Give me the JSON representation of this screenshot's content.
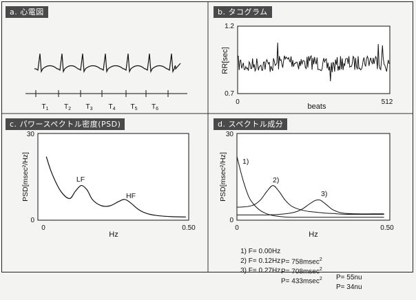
{
  "panels": {
    "a": {
      "label": "a. 心電図",
      "intervals": [
        "T",
        "T",
        "T",
        "T",
        "T",
        "T"
      ],
      "subscripts": [
        "1",
        "2",
        "3",
        "4",
        "5",
        "6"
      ]
    },
    "b": {
      "label": "b. タコグラム",
      "ylabel": "RR[sec]",
      "xlabel": "beats",
      "yticks": [
        "1.2",
        "0.7"
      ],
      "xticks": [
        "0",
        "512"
      ]
    },
    "c": {
      "label": "c. パワースペクトル密度(PSD)",
      "ylabel": "PSD[msec²/Hz]",
      "xlabel": "Hz",
      "yticks": [
        "30",
        "0"
      ],
      "xticks": [
        "0",
        "0.50"
      ],
      "annotations": [
        "LF",
        "HF"
      ]
    },
    "d": {
      "label": "d. スペクトル成分",
      "ylabel": "PSD[msec²/Hz]",
      "xlabel": "Hz",
      "yticks": [
        "30",
        "0"
      ],
      "xticks": [
        "0",
        "0.50"
      ],
      "component_labels": [
        "1)",
        "2)",
        "3)"
      ],
      "legend": [
        {
          "f": "1) F= 0.00Hz",
          "p": "P= 758msec",
          "sup": "2",
          "nu": ""
        },
        {
          "f": "2) F= 0.12Hz",
          "p": "P= 708msec",
          "sup": "2",
          "nu": "P= 55nu"
        },
        {
          "f": "3) F= 0.27Hz",
          "p": "P= 433msec",
          "sup": "2",
          "nu": "P= 34nu"
        }
      ]
    }
  },
  "chart_data": [
    {
      "type": "line",
      "title": "c. パワースペクトル密度(PSD)",
      "xlabel": "Hz",
      "ylabel": "PSD[msec²/Hz]",
      "xlim": [
        0,
        0.5
      ],
      "ylim": [
        0,
        30
      ],
      "x": [
        0.01,
        0.03,
        0.06,
        0.09,
        0.11,
        0.13,
        0.15,
        0.17,
        0.2,
        0.23,
        0.26,
        0.28,
        0.3,
        0.33,
        0.36,
        0.4,
        0.45,
        0.49
      ],
      "series": [
        {
          "values": [
            22,
            16,
            10,
            7.5,
            10,
            12,
            10.5,
            7,
            5,
            5,
            6.5,
            7.2,
            6,
            3.5,
            2.2,
            1.5,
            1.2,
            1.1
          ]
        }
      ]
    },
    {
      "type": "line",
      "title": "d. スペクトル成分",
      "xlabel": "Hz",
      "ylabel": "PSD[msec²/Hz]",
      "xlim": [
        0,
        0.5
      ],
      "ylim": [
        0,
        30
      ],
      "x": [
        0.0,
        0.02,
        0.04,
        0.06,
        0.08,
        0.1,
        0.12,
        0.14,
        0.16,
        0.18,
        0.2,
        0.22,
        0.24,
        0.26,
        0.27,
        0.28,
        0.3,
        0.32,
        0.35,
        0.4,
        0.45,
        0.49
      ],
      "series": [
        {
          "name": "1)",
          "values": [
            22,
            14,
            8,
            5,
            3.2,
            2.2,
            1.6,
            1.3,
            1.1,
            1.0,
            1.0,
            1.0,
            1.0,
            1.0,
            1.0,
            1.0,
            1.0,
            1.0,
            1.0,
            1.0,
            1.0,
            1.0
          ]
        },
        {
          "name": "2)",
          "values": [
            4.5,
            4.6,
            4.8,
            5.5,
            7.2,
            10,
            12,
            10,
            7,
            5,
            4,
            3.4,
            3.0,
            2.8,
            2.7,
            2.6,
            2.4,
            2.3,
            2.1,
            2.0,
            2.0,
            2.0
          ]
        },
        {
          "name": "3)",
          "values": [
            1.8,
            1.8,
            1.8,
            1.8,
            1.8,
            1.8,
            1.9,
            2.0,
            2.2,
            2.5,
            3.0,
            4.0,
            5.5,
            6.8,
            7.0,
            6.8,
            5.2,
            3.6,
            2.5,
            2.2,
            2.2,
            2.2
          ]
        }
      ]
    }
  ]
}
